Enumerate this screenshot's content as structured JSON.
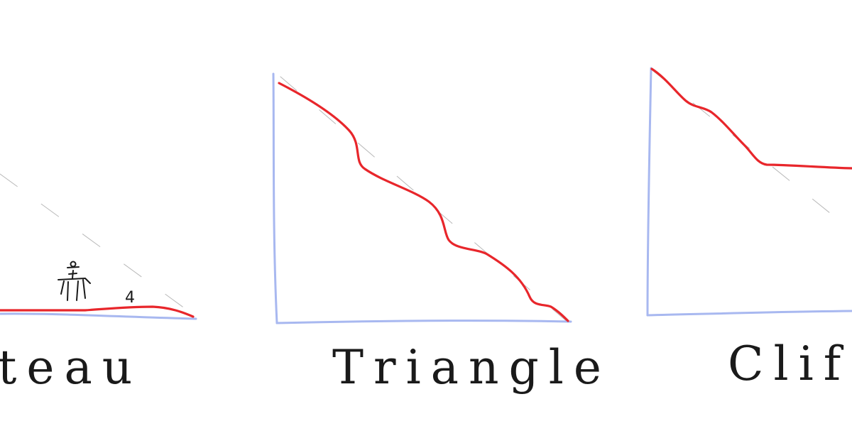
{
  "panels": [
    {
      "name": "plateau",
      "label": "Plateau",
      "annotation": "4",
      "color": "#e8262b"
    },
    {
      "name": "triangle",
      "label": "Triangle",
      "color": "#e8262b"
    },
    {
      "name": "cliff",
      "label": "Cliff",
      "color": "#e8262b"
    }
  ],
  "axis_color": "#a8b8f0"
}
